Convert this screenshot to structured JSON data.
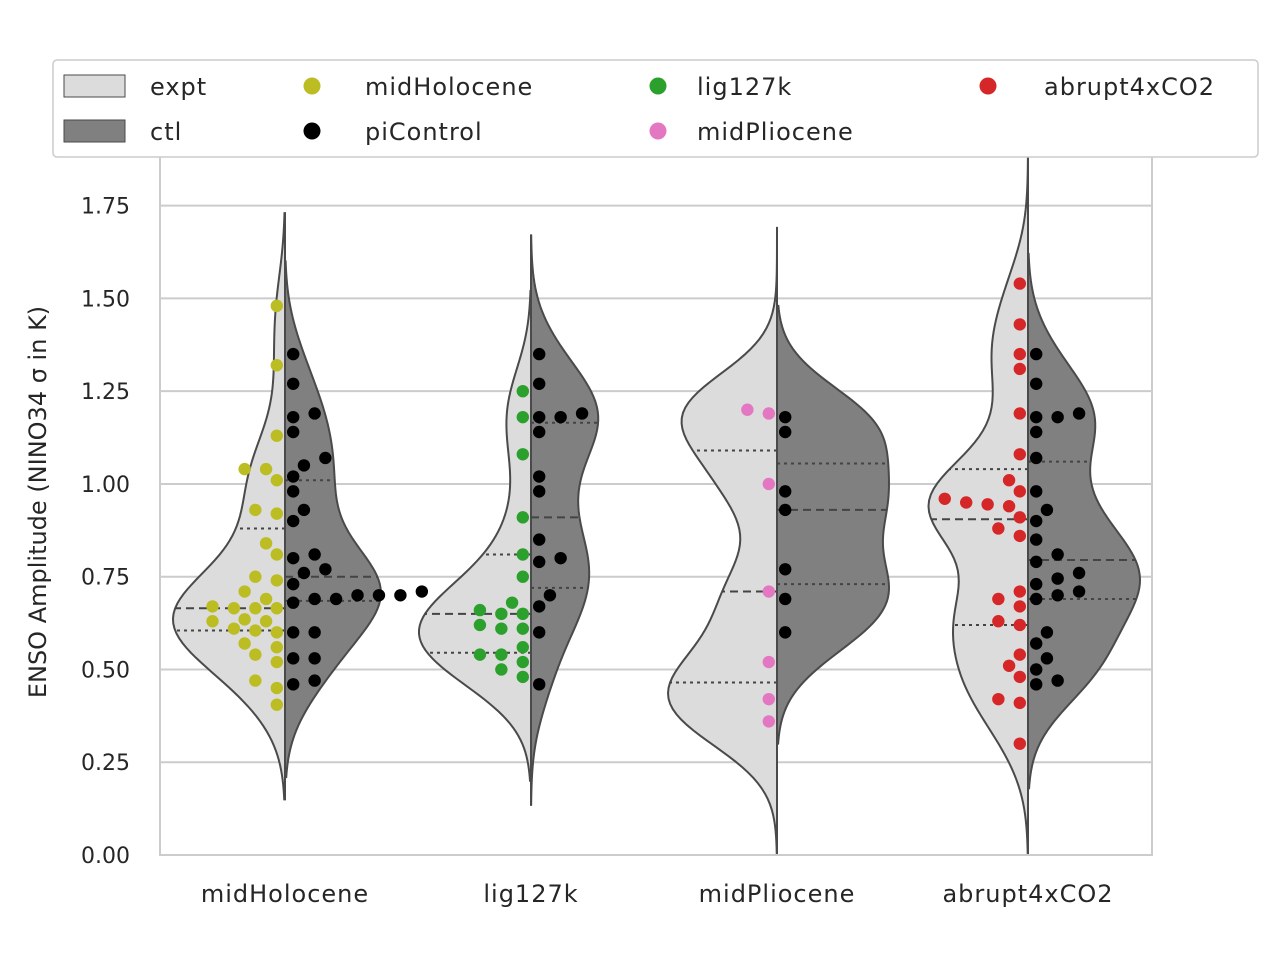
{
  "chart_data": {
    "type": "violin",
    "title": "",
    "xlabel": "",
    "ylabel": "ENSO Amplitude (NINO34 σ in K)",
    "ylim": [
      0.0,
      1.9
    ],
    "yticks": [
      0.0,
      0.25,
      0.5,
      0.75,
      1.0,
      1.25,
      1.5,
      1.75
    ],
    "ytick_labels": [
      "0.00",
      "0.25",
      "0.50",
      "0.75",
      "1.00",
      "1.25",
      "1.50",
      "1.75"
    ],
    "grid": true,
    "legend_position": "top",
    "categories": [
      "midHolocene",
      "lig127k",
      "midPliocene",
      "abrupt4xCO2"
    ],
    "legend": [
      {
        "label": "expt",
        "kind": "patch",
        "color": "#dcdcdc"
      },
      {
        "label": "ctl",
        "kind": "patch",
        "color": "#808080"
      },
      {
        "label": "midHolocene",
        "kind": "dot",
        "color": "#bcbd22"
      },
      {
        "label": "piControl",
        "kind": "dot",
        "color": "#000000"
      },
      {
        "label": "lig127k",
        "kind": "dot",
        "color": "#2ca02c"
      },
      {
        "label": "midPliocene",
        "kind": "dot",
        "color": "#e377c2"
      },
      {
        "label": "abrupt4xCO2",
        "kind": "dot",
        "color": "#d62728"
      }
    ],
    "expt_color": "#dcdcdc",
    "ctl_color": "#808080",
    "groups": [
      {
        "name": "midHolocene",
        "expt_color": "#bcbd22",
        "expt_values": [
          1.48,
          1.32,
          1.13,
          1.04,
          1.04,
          1.01,
          0.93,
          0.92,
          0.84,
          0.81,
          0.75,
          0.74,
          0.71,
          0.69,
          0.67,
          0.665,
          0.665,
          0.665,
          0.635,
          0.63,
          0.63,
          0.61,
          0.605,
          0.6,
          0.57,
          0.56,
          0.54,
          0.52,
          0.47,
          0.45,
          0.405
        ],
        "ctl_values": [
          1.35,
          1.27,
          1.19,
          1.18,
          1.14,
          1.07,
          1.05,
          1.02,
          0.98,
          0.93,
          0.9,
          0.8,
          0.81,
          0.77,
          0.76,
          0.73,
          0.71,
          0.7,
          0.7,
          0.7,
          0.69,
          0.69,
          0.68,
          0.6,
          0.6,
          0.53,
          0.53,
          0.47,
          0.46
        ],
        "expt_quartiles": [
          0.605,
          0.665,
          0.88
        ],
        "ctl_quartiles": [
          0.685,
          0.75,
          1.01
        ],
        "expt_range": [
          0.15,
          1.73
        ],
        "ctl_range": [
          0.21,
          1.6
        ]
      },
      {
        "name": "lig127k",
        "expt_color": "#2ca02c",
        "expt_values": [
          1.25,
          1.18,
          1.08,
          0.91,
          0.81,
          0.75,
          0.68,
          0.66,
          0.65,
          0.65,
          0.62,
          0.61,
          0.61,
          0.56,
          0.54,
          0.54,
          0.52,
          0.5,
          0.48
        ],
        "ctl_values": [
          1.35,
          1.27,
          1.19,
          1.18,
          1.18,
          1.14,
          1.02,
          0.98,
          0.85,
          0.8,
          0.79,
          0.7,
          0.67,
          0.6,
          0.46
        ],
        "expt_quartiles": [
          0.545,
          0.65,
          0.81
        ],
        "ctl_quartiles": [
          0.72,
          0.91,
          1.165
        ],
        "expt_range": [
          0.2,
          1.52
        ],
        "ctl_range": [
          0.135,
          1.67
        ]
      },
      {
        "name": "midPliocene",
        "expt_color": "#e377c2",
        "expt_values": [
          1.2,
          1.19,
          1.0,
          0.71,
          0.52,
          0.42,
          0.36
        ],
        "ctl_values": [
          1.18,
          1.14,
          0.98,
          0.93,
          0.77,
          0.69,
          0.6
        ],
        "expt_quartiles": [
          0.465,
          0.71,
          1.09
        ],
        "ctl_quartiles": [
          0.73,
          0.93,
          1.055
        ],
        "expt_range": [
          -0.02,
          1.69
        ],
        "ctl_range": [
          0.3,
          1.48
        ]
      },
      {
        "name": "abrupt4xCO2",
        "expt_color": "#d62728",
        "expt_values": [
          1.54,
          1.43,
          1.35,
          1.31,
          1.19,
          1.08,
          1.01,
          0.98,
          0.96,
          0.95,
          0.945,
          0.94,
          0.91,
          0.88,
          0.86,
          0.71,
          0.69,
          0.67,
          0.63,
          0.62,
          0.54,
          0.51,
          0.48,
          0.42,
          0.41,
          0.3
        ],
        "ctl_values": [
          1.35,
          1.27,
          1.19,
          1.18,
          1.18,
          1.14,
          1.07,
          0.98,
          0.93,
          0.9,
          0.85,
          0.81,
          0.79,
          0.76,
          0.73,
          0.745,
          0.71,
          0.7,
          0.69,
          0.6,
          0.57,
          0.53,
          0.5,
          0.47,
          0.46
        ],
        "expt_quartiles": [
          0.62,
          0.905,
          1.04
        ],
        "ctl_quartiles": [
          0.69,
          0.795,
          1.06
        ],
        "expt_range": [
          0.0,
          1.88
        ],
        "ctl_range": [
          0.18,
          1.62
        ]
      }
    ]
  }
}
